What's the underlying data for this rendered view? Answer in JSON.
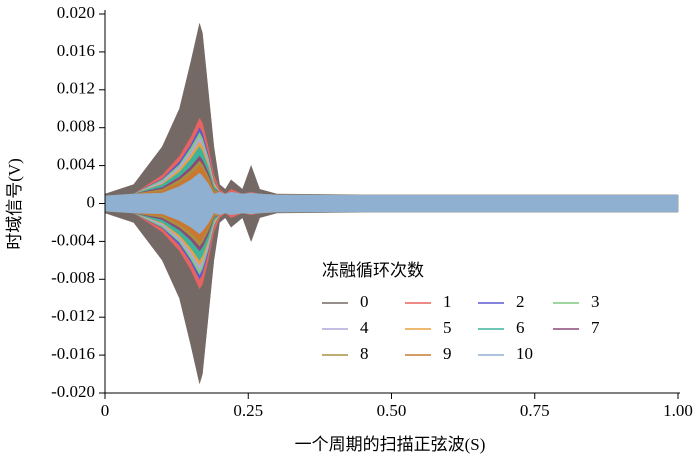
{
  "chart_data": {
    "type": "envelope",
    "x_label": "一个周期的扫描正弦波(S)",
    "y_label": "时域信号(V)",
    "legend_title": "冻融循环次数",
    "xlim": [
      0,
      1.0
    ],
    "xticks": [
      0,
      0.25,
      {
        "value": 0.5,
        "label": "0.50"
      },
      0.75,
      {
        "value": 1.0,
        "label": "1.00"
      }
    ],
    "ylim": [
      -0.02,
      0.02
    ],
    "yticks": [
      {
        "value": 0.02,
        "label": "0.020"
      },
      {
        "value": 0.016,
        "label": "0.016"
      },
      {
        "value": 0.012,
        "label": "0.012"
      },
      {
        "value": 0.008,
        "label": "0.008"
      },
      {
        "value": 0.004,
        "label": "0.004"
      },
      0,
      {
        "value": -0.004,
        "label": "-0.004"
      },
      {
        "value": -0.008,
        "label": "-0.008"
      },
      {
        "value": -0.012,
        "label": "-0.012"
      },
      {
        "value": -0.016,
        "label": "-0.016"
      },
      {
        "value": -0.02,
        "label": "-0.020"
      }
    ],
    "x": [
      0,
      0.05,
      0.1,
      0.13,
      0.15,
      0.165,
      0.17,
      0.18,
      0.19,
      0.2,
      0.21,
      0.22,
      0.24,
      0.255,
      0.27,
      0.3,
      0.5,
      1.0
    ],
    "series": [
      {
        "name": "0",
        "color": "#756966",
        "values": [
          0.001,
          0.002,
          0.006,
          0.01,
          0.015,
          0.019,
          0.018,
          0.012,
          0.006,
          0.002,
          0.0015,
          0.0025,
          0.0015,
          0.004,
          0.0015,
          0.001,
          0.0009,
          0.0009
        ]
      },
      {
        "name": "1",
        "color": "#e8635f",
        "values": [
          0.0008,
          0.001,
          0.003,
          0.005,
          0.007,
          0.009,
          0.0085,
          0.006,
          0.003,
          0.0015,
          0.001,
          0.0015,
          0.001,
          0.0012,
          0.001,
          0.0009,
          0.0009,
          0.0009
        ]
      },
      {
        "name": "2",
        "color": "#5a5ad0",
        "values": [
          0.0008,
          0.001,
          0.0026,
          0.0044,
          0.0062,
          0.008,
          0.0074,
          0.0052,
          0.0024,
          0.0012,
          0.001,
          0.0012,
          0.001,
          0.0011,
          0.001,
          0.0009,
          0.0009,
          0.0009
        ]
      },
      {
        "name": "3",
        "color": "#7fc97f",
        "values": [
          0.0008,
          0.001,
          0.0025,
          0.0041,
          0.0059,
          0.0075,
          0.0069,
          0.0049,
          0.0023,
          0.0012,
          0.001,
          0.0012,
          0.001,
          0.0011,
          0.001,
          0.0009,
          0.0009,
          0.0009
        ]
      },
      {
        "name": "4",
        "color": "#b0a8d8",
        "values": [
          0.0008,
          0.001,
          0.0023,
          0.0039,
          0.0055,
          0.007,
          0.0064,
          0.0046,
          0.0021,
          0.0012,
          0.001,
          0.0012,
          0.001,
          0.0011,
          0.001,
          0.0009,
          0.0009,
          0.0009
        ]
      },
      {
        "name": "5",
        "color": "#e8a040",
        "values": [
          0.0008,
          0.001,
          0.0021,
          0.0036,
          0.0051,
          0.0065,
          0.006,
          0.0042,
          0.002,
          0.0012,
          0.001,
          0.0012,
          0.001,
          0.0011,
          0.001,
          0.0009,
          0.0009,
          0.0009
        ]
      },
      {
        "name": "6",
        "color": "#3cb39a",
        "values": [
          0.0008,
          0.001,
          0.002,
          0.0033,
          0.0047,
          0.006,
          0.0055,
          0.0039,
          0.0018,
          0.0012,
          0.001,
          0.0012,
          0.001,
          0.0011,
          0.001,
          0.0009,
          0.0009,
          0.0009
        ]
      },
      {
        "name": "7",
        "color": "#8a4a7a",
        "values": [
          0.0008,
          0.001,
          0.0017,
          0.0028,
          0.0039,
          0.005,
          0.0046,
          0.0033,
          0.0015,
          0.0012,
          0.001,
          0.0012,
          0.001,
          0.0011,
          0.001,
          0.0009,
          0.0009,
          0.0009
        ]
      },
      {
        "name": "8",
        "color": "#a89040",
        "values": [
          0.0008,
          0.001,
          0.0015,
          0.0025,
          0.0035,
          0.0045,
          0.0041,
          0.0029,
          0.0014,
          0.0012,
          0.001,
          0.0012,
          0.001,
          0.0011,
          0.001,
          0.0009,
          0.0009,
          0.0009
        ]
      },
      {
        "name": "9",
        "color": "#c87830",
        "values": [
          0.0008,
          0.001,
          0.0013,
          0.0022,
          0.0031,
          0.004,
          0.0037,
          0.0026,
          0.0012,
          0.0012,
          0.001,
          0.0012,
          0.001,
          0.0011,
          0.001,
          0.0009,
          0.0009,
          0.0009
        ]
      },
      {
        "name": "10",
        "color": "#8fb0d0",
        "values": [
          0.0008,
          0.001,
          0.0011,
          0.0018,
          0.0025,
          0.0032,
          0.0029,
          0.0021,
          0.001,
          0.0012,
          0.001,
          0.0012,
          0.001,
          0.0011,
          0.001,
          0.0009,
          0.0009,
          0.0009
        ]
      }
    ]
  }
}
